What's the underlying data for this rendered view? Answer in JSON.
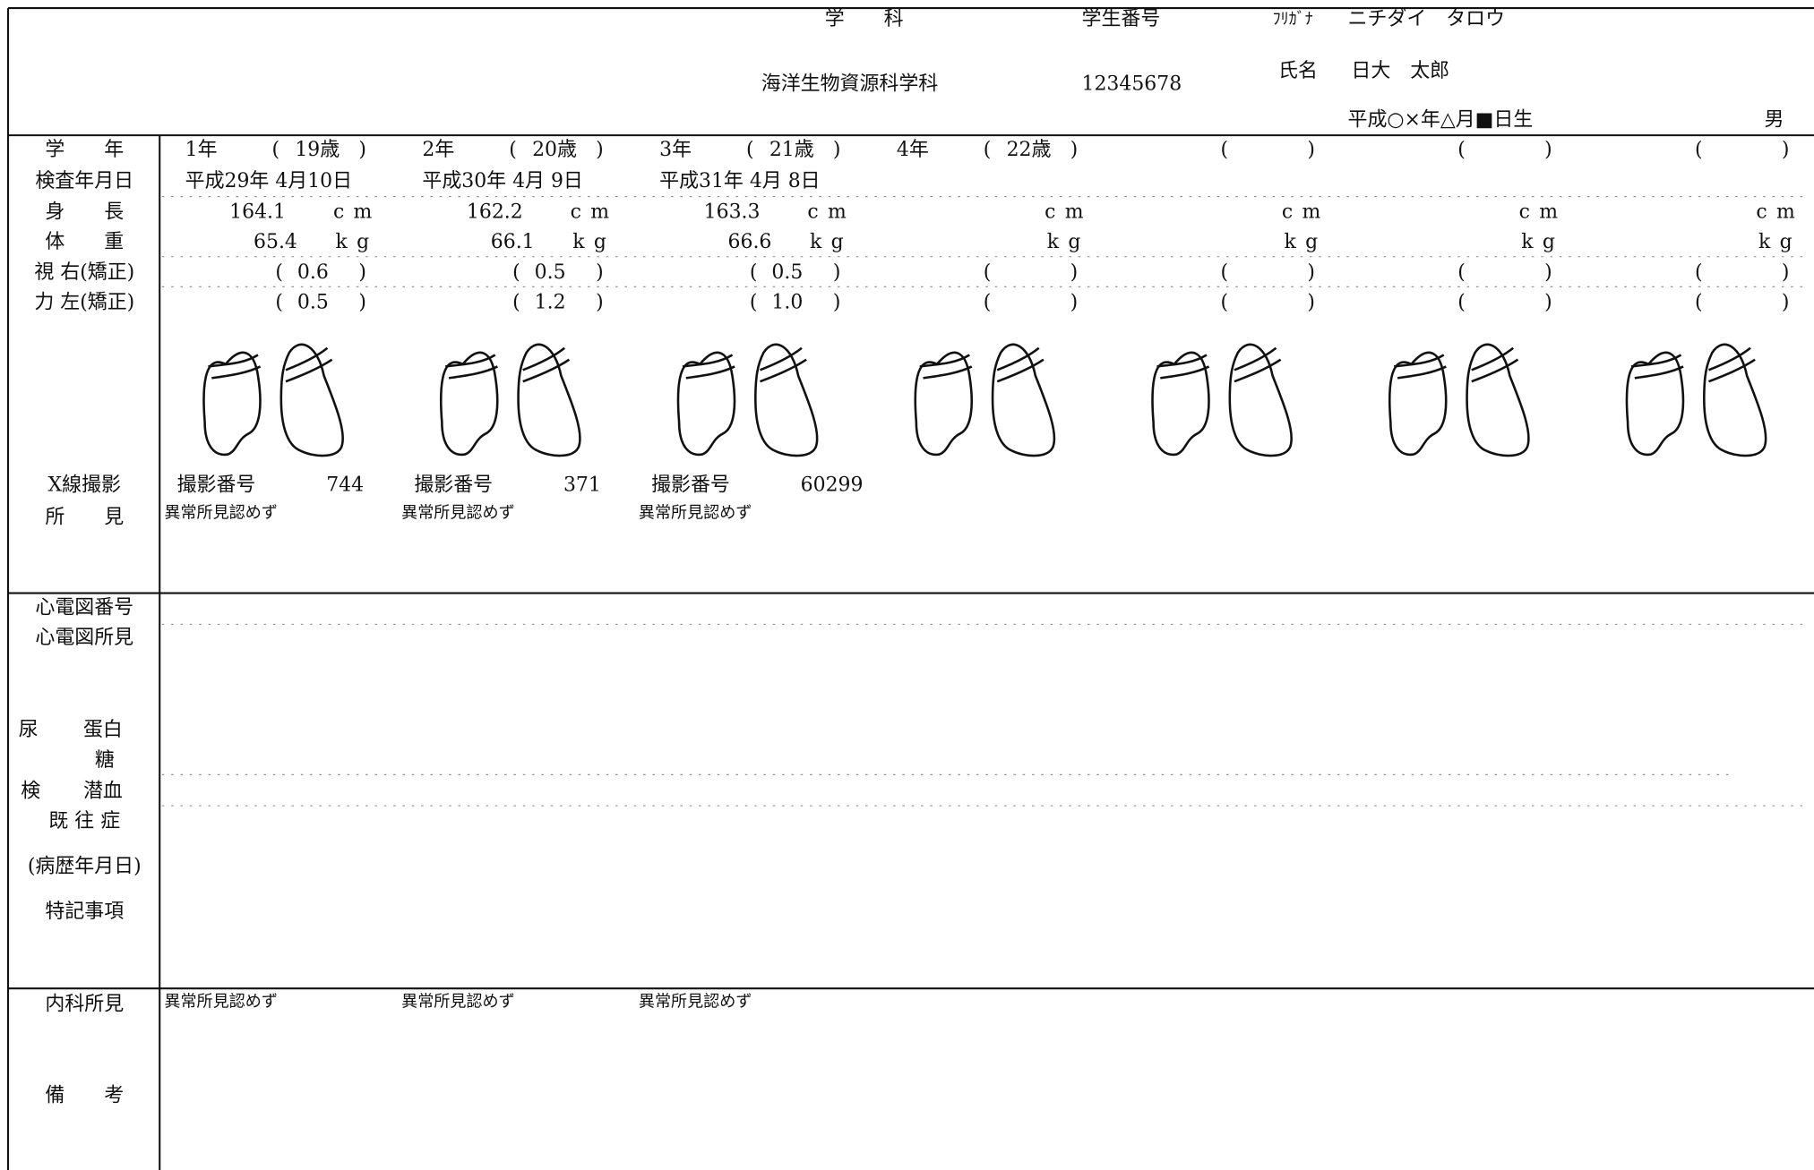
{
  "header": {
    "dept_label": "学　　科",
    "dept": "海洋生物資源科学科",
    "student_no_label": "学生番号",
    "student_no": "12345678",
    "furigana_label": "ﾌﾘｶﾞﾅ",
    "furigana": "ニチダイ　タロウ",
    "name_label": "氏名",
    "name": "日大　太郎",
    "birth": "平成○×年△月■日生",
    "sex": "男"
  },
  "labels": {
    "grade": "学　　年",
    "exam_date": "検査年月日",
    "height": "身　　長",
    "weight": "体　　重",
    "vision_right": "視 右(矯正)",
    "vision_left": "力 左(矯正)",
    "xray": "X線撮影",
    "xray_finding": "所　　見",
    "ecg_no": "心電図番号",
    "ecg_finding": "心電図所見",
    "urine": "尿",
    "protein": "蛋白",
    "sugar": "糖",
    "test": "検",
    "occult_blood": "潜血",
    "history": "既 往 症",
    "history_date": "(病歴年月日)",
    "notes": "特記事項",
    "medical_finding": "内科所見",
    "remarks": "備　　考"
  },
  "units": {
    "height": "cm",
    "weight": "kg"
  },
  "brackets": [
    "(",
    ")"
  ],
  "columns": [
    {
      "year": "1年",
      "age": "19歳",
      "date": "平成29年 4月10日",
      "height": "164.1",
      "weight": "65.4",
      "vision_right": "0.6",
      "vision_left": "0.5",
      "xray_label": "撮影番号",
      "xray_no": "744",
      "xray_finding": "異常所見認めず",
      "medical_finding": "異常所見認めず"
    },
    {
      "year": "2年",
      "age": "20歳",
      "date": "平成30年 4月 9日",
      "height": "162.2",
      "weight": "66.1",
      "vision_right": "0.5",
      "vision_left": "1.2",
      "xray_label": "撮影番号",
      "xray_no": "371",
      "xray_finding": "異常所見認めず",
      "medical_finding": "異常所見認めず"
    },
    {
      "year": "3年",
      "age": "21歳",
      "date": "平成31年 4月 8日",
      "height": "163.3",
      "weight": "66.6",
      "vision_right": "0.5",
      "vision_left": "1.0",
      "xray_label": "撮影番号",
      "xray_no": "60299",
      "xray_finding": "異常所見認めず",
      "medical_finding": "異常所見認めず"
    },
    {
      "year": "4年",
      "age": "22歳"
    }
  ]
}
